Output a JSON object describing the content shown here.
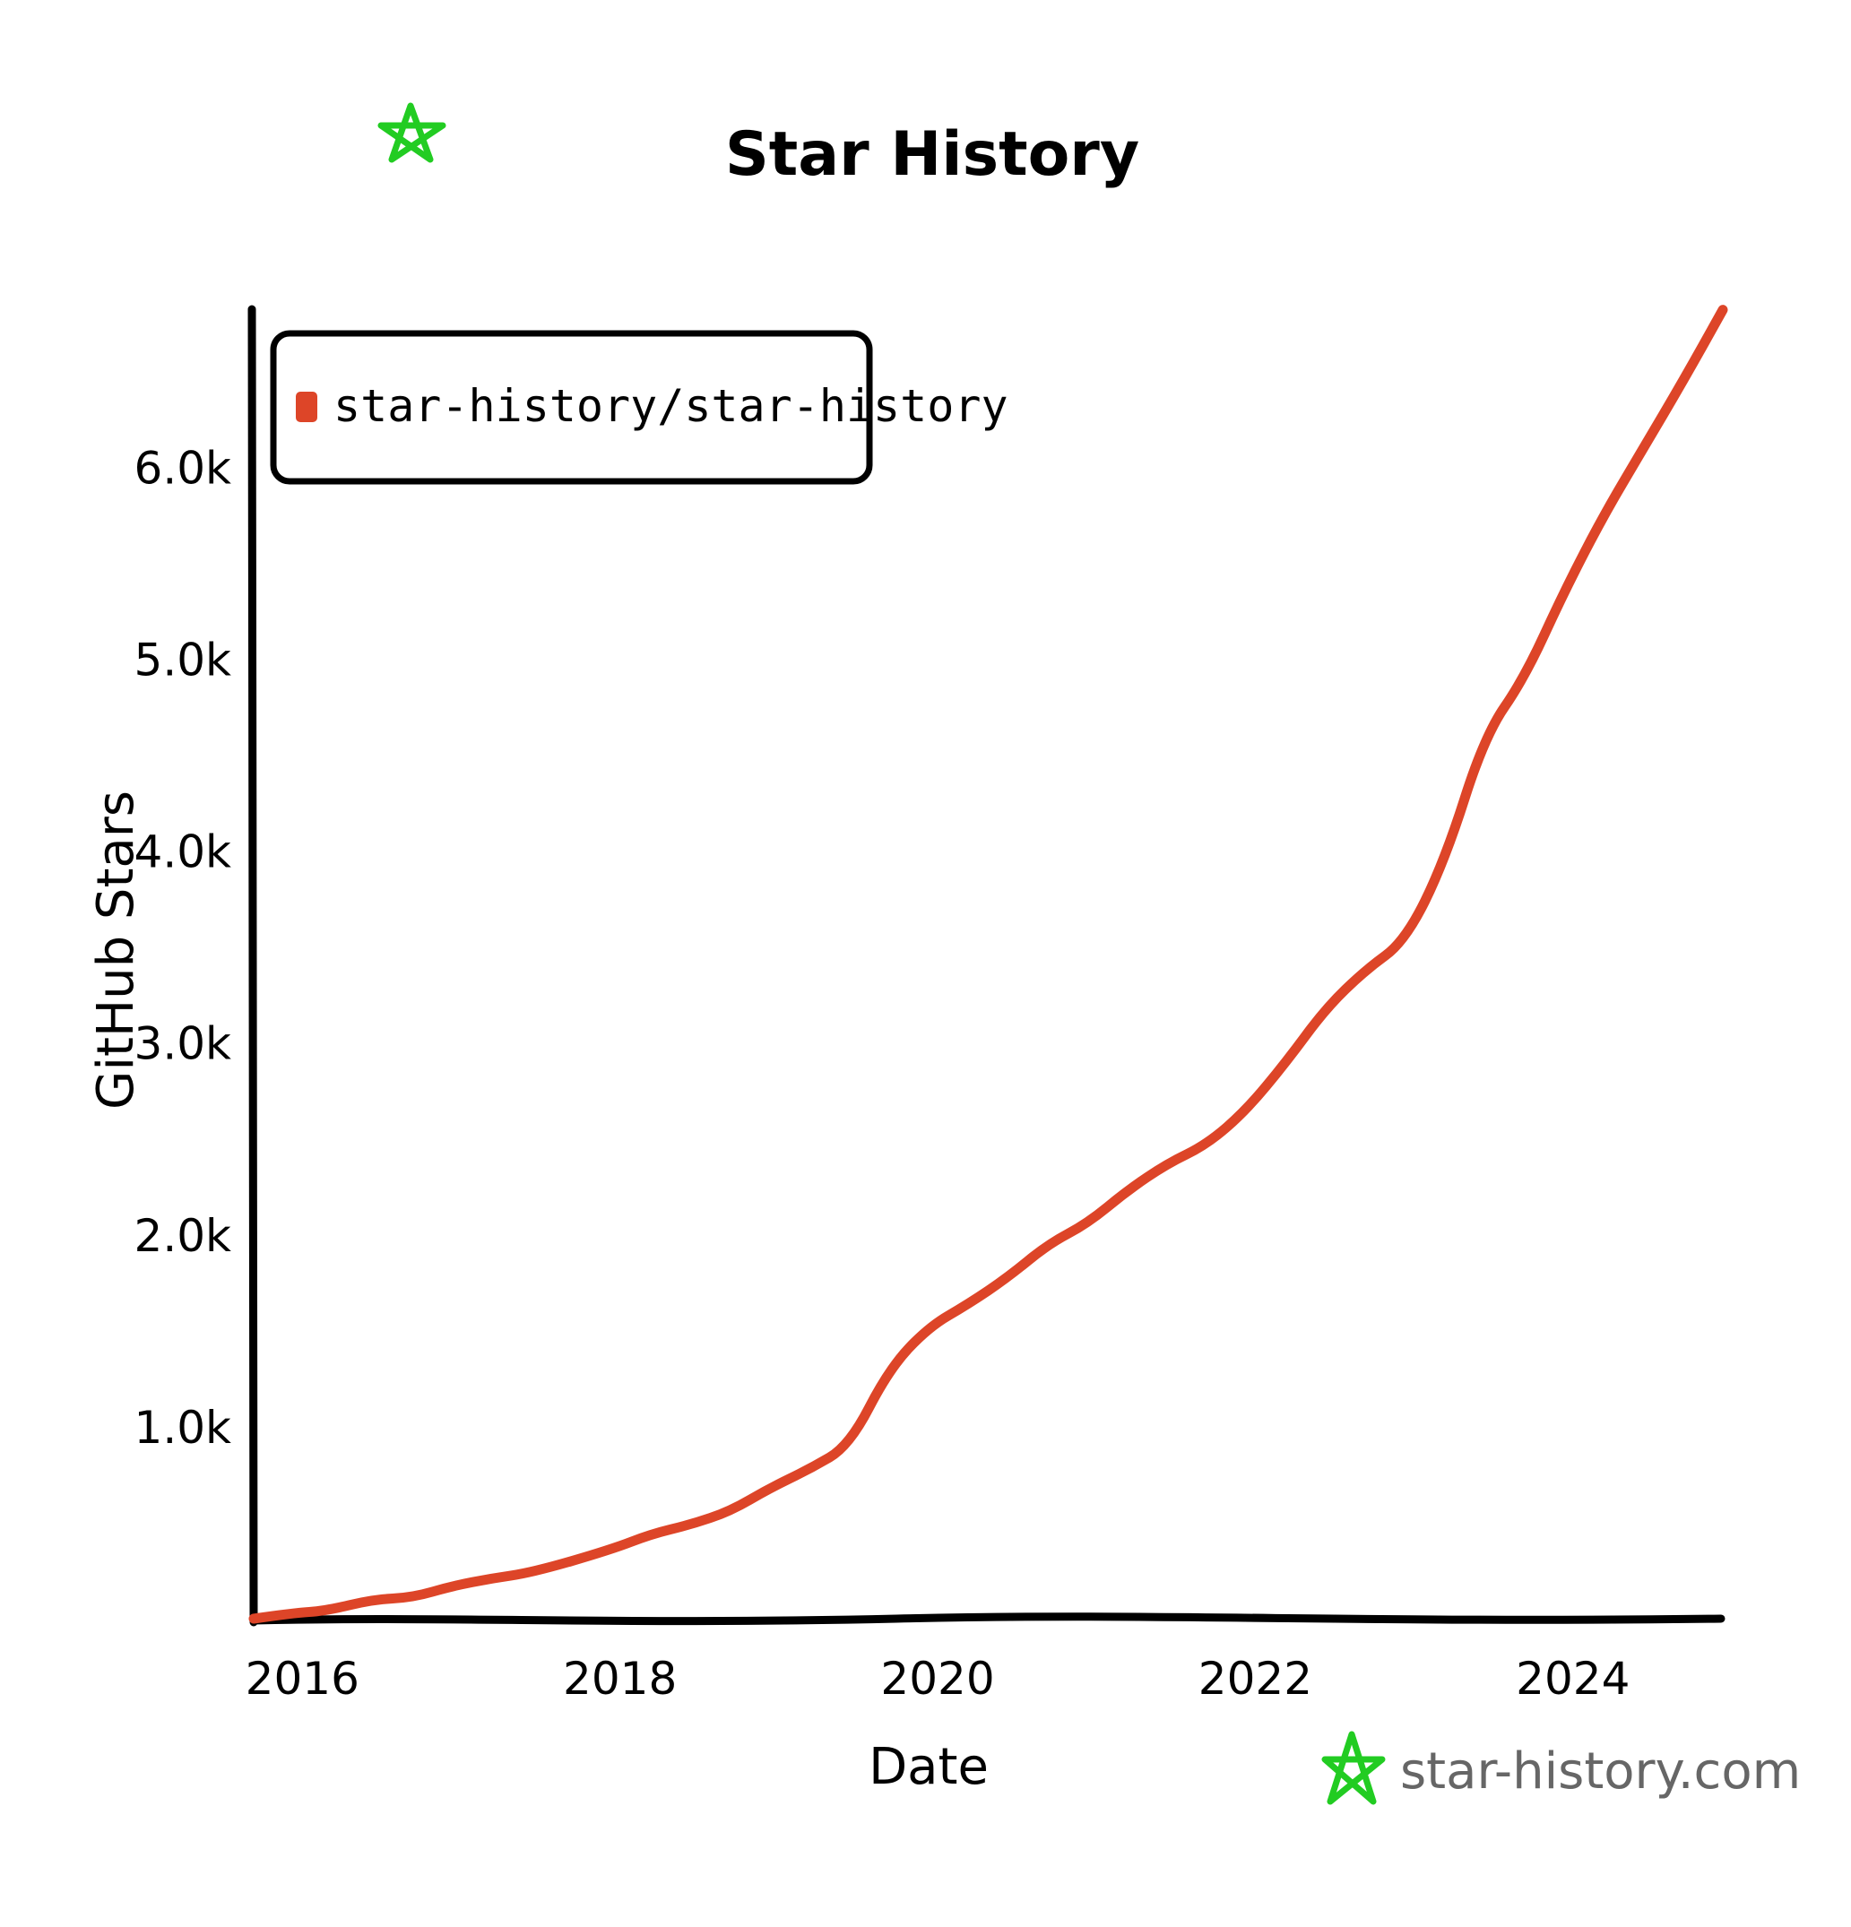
{
  "colors": {
    "series": "#dd4528",
    "axis": "#000000",
    "logo": "#22cc22",
    "watermark": "#666666"
  },
  "chart_data": {
    "type": "line",
    "title": "Star History",
    "xlabel": "Date",
    "ylabel": "GitHub Stars",
    "xlim": [
      2015.75,
      2025.0
    ],
    "ylim": [
      0,
      6800
    ],
    "x_ticks": [
      {
        "value": 2016,
        "label": "2016"
      },
      {
        "value": 2018,
        "label": "2018"
      },
      {
        "value": 2020,
        "label": "2020"
      },
      {
        "value": 2022,
        "label": "2022"
      },
      {
        "value": 2024,
        "label": "2024"
      }
    ],
    "y_ticks": [
      {
        "value": 1000,
        "label": "1.0k"
      },
      {
        "value": 2000,
        "label": "2.0k"
      },
      {
        "value": 3000,
        "label": "3.0k"
      },
      {
        "value": 4000,
        "label": "4.0k"
      },
      {
        "value": 5000,
        "label": "5.0k"
      },
      {
        "value": 6000,
        "label": "6.0k"
      }
    ],
    "legend_position": "top-left",
    "grid": false,
    "series": [
      {
        "name": "star-history/star-history",
        "color": "#dd4528",
        "points": [
          [
            2015.75,
            0
          ],
          [
            2016.0,
            30
          ],
          [
            2016.2,
            40
          ],
          [
            2016.5,
            100
          ],
          [
            2016.75,
            110
          ],
          [
            2017.0,
            170
          ],
          [
            2017.25,
            210
          ],
          [
            2017.5,
            240
          ],
          [
            2018.0,
            360
          ],
          [
            2018.25,
            440
          ],
          [
            2018.5,
            490
          ],
          [
            2018.75,
            560
          ],
          [
            2019.0,
            680
          ],
          [
            2019.25,
            780
          ],
          [
            2019.5,
            900
          ],
          [
            2019.75,
            1300
          ],
          [
            2020.0,
            1520
          ],
          [
            2020.25,
            1640
          ],
          [
            2020.5,
            1780
          ],
          [
            2020.75,
            1950
          ],
          [
            2021.0,
            2060
          ],
          [
            2021.25,
            2230
          ],
          [
            2021.5,
            2370
          ],
          [
            2021.75,
            2470
          ],
          [
            2022.0,
            2650
          ],
          [
            2022.25,
            2900
          ],
          [
            2022.5,
            3180
          ],
          [
            2022.75,
            3380
          ],
          [
            2023.0,
            3530
          ],
          [
            2023.25,
            3950
          ],
          [
            2023.5,
            4600
          ],
          [
            2023.75,
            4900
          ],
          [
            2024.0,
            5350
          ],
          [
            2024.25,
            5750
          ],
          [
            2024.5,
            6100
          ],
          [
            2024.75,
            6450
          ],
          [
            2025.0,
            6820
          ]
        ]
      }
    ]
  },
  "watermark": {
    "text": "star-history.com"
  }
}
